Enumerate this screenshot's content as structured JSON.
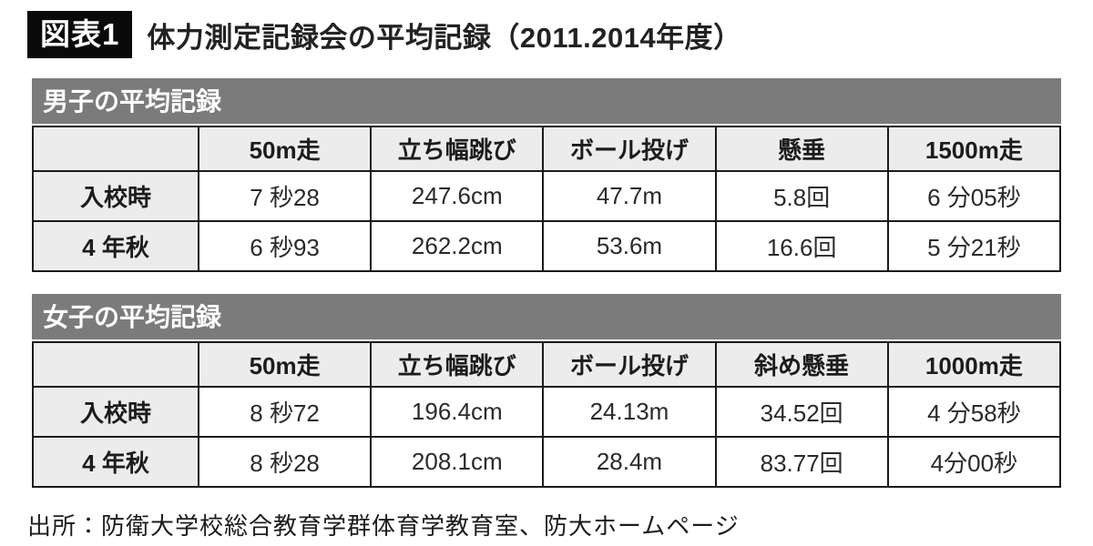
{
  "header": {
    "badge": "図表1",
    "title": "体力測定記録会の平均記録（2011.2014年度）"
  },
  "tables": [
    {
      "band_title": "男子の平均記録",
      "columns": [
        "",
        "50m走",
        "立ち幅跳び",
        "ボール投げ",
        "懸垂",
        "1500m走"
      ],
      "rows": [
        {
          "label": "入校時",
          "values": [
            "7 秒28",
            "247.6cm",
            "47.7m",
            "5.8回",
            "6 分05秒"
          ]
        },
        {
          "label": "4 年秋",
          "values": [
            "6 秒93",
            "262.2cm",
            "53.6m",
            "16.6回",
            "5 分21秒"
          ]
        }
      ]
    },
    {
      "band_title": "女子の平均記録",
      "columns": [
        "",
        "50m走",
        "立ち幅跳び",
        "ボール投げ",
        "斜め懸垂",
        "1000m走"
      ],
      "rows": [
        {
          "label": "入校時",
          "values": [
            "8 秒72",
            "196.4cm",
            "24.13m",
            "34.52回",
            "4 分58秒"
          ]
        },
        {
          "label": "4 年秋",
          "values": [
            "8 秒28",
            "208.1cm",
            "28.4m",
            "83.77回",
            "4分00秒"
          ]
        }
      ]
    }
  ],
  "source": "出所：防衛大学校総合教育学群体育学教育室、防大ホームページ",
  "colors": {
    "band_bg": "#7b7b7b",
    "cell_gray": "#ececec",
    "border": "#1a1a1a",
    "badge_bg": "#0a0a0a",
    "page_bg": "#ffffff"
  }
}
